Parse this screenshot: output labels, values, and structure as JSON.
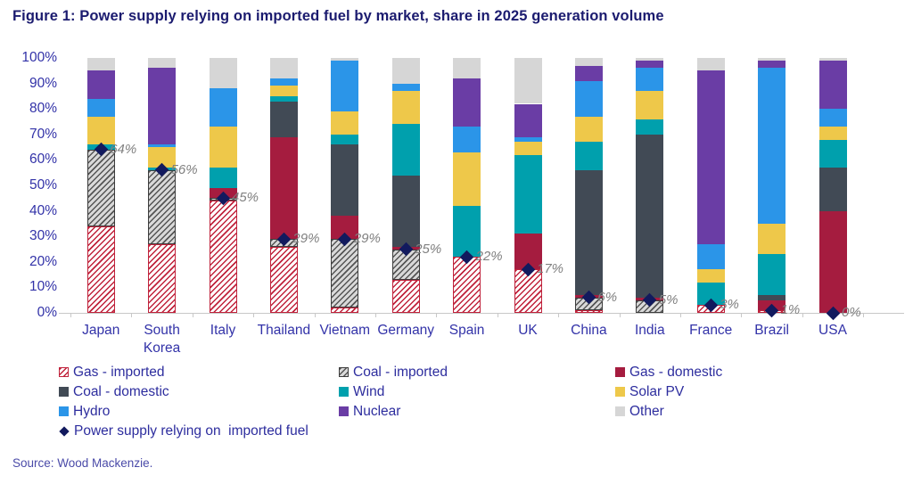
{
  "title": "Figure 1: Power supply relying on imported fuel by market, share in 2025 generation volume",
  "source": "Source: Wood Mackenzie.",
  "colors": {
    "title_text": "#1b1b6f",
    "axis_text": "#3232a8",
    "legend_text": "#2d2d9e",
    "source_text": "#4a4aa8",
    "marker_label_text": "#808080",
    "axis_line": "#c8c8c8",
    "gas_imported_stripe": "#c0223b",
    "gas_imported_bg": "#ffffff",
    "coal_imported_stripe": "#555555",
    "coal_imported_bg": "#d9d9d9",
    "coal_imported_border": "#3d3d3d",
    "gas_domestic": "#a51c3f",
    "coal_domestic": "#414a55",
    "wind": "#00a0ad",
    "solar_pv": "#eec84a",
    "hydro": "#2b95e8",
    "nuclear": "#6a3da5",
    "other": "#d6d6d6",
    "marker": "#121a5e"
  },
  "chart_data": {
    "type": "bar",
    "stacked": true,
    "unit": "%",
    "ylim": [
      0,
      100
    ],
    "grid": false,
    "legend_position": "bottom",
    "y_ticks": [
      "100%",
      "90%",
      "80%",
      "70%",
      "60%",
      "50%",
      "40%",
      "30%",
      "20%",
      "10%",
      "0%"
    ],
    "categories": [
      "Japan",
      "South Korea",
      "Italy",
      "Thailand",
      "Vietnam",
      "Germany",
      "Spain",
      "UK",
      "China",
      "India",
      "France",
      "Brazil",
      "USA"
    ],
    "series": [
      {
        "key": "gas_imported",
        "name": "Gas - imported",
        "values": [
          34,
          27,
          44,
          26,
          2,
          13,
          22,
          17,
          1,
          0,
          3,
          1,
          0
        ]
      },
      {
        "key": "coal_imported",
        "name": "Coal - imported",
        "values": [
          30,
          29,
          1,
          3,
          27,
          12,
          0,
          0,
          5,
          5,
          0,
          0,
          0
        ]
      },
      {
        "key": "gas_domestic",
        "name": "Gas - domestic",
        "values": [
          0,
          0,
          4,
          40,
          9,
          1,
          0,
          14,
          1,
          1,
          0,
          4,
          40
        ]
      },
      {
        "key": "coal_domestic",
        "name": "Coal - domestic",
        "values": [
          0,
          0,
          0,
          14,
          28,
          28,
          0,
          0,
          49,
          64,
          0,
          2,
          17
        ]
      },
      {
        "key": "wind",
        "name": "Wind",
        "values": [
          2,
          1,
          8,
          2,
          4,
          20,
          20,
          31,
          11,
          6,
          9,
          16,
          11
        ]
      },
      {
        "key": "solar_pv",
        "name": "Solar PV",
        "values": [
          11,
          8,
          16,
          4,
          9,
          13,
          21,
          5,
          10,
          11,
          5,
          12,
          5
        ]
      },
      {
        "key": "hydro",
        "name": "Hydro",
        "values": [
          7,
          1,
          15,
          3,
          20,
          3,
          10,
          2,
          14,
          9,
          10,
          61,
          7
        ]
      },
      {
        "key": "nuclear",
        "name": "Nuclear",
        "values": [
          11,
          30,
          0,
          0,
          0,
          0,
          19,
          13,
          6,
          3,
          68,
          3,
          19
        ]
      },
      {
        "key": "other",
        "name": "Other",
        "values": [
          5,
          4,
          12,
          8,
          1,
          10,
          8,
          18,
          3,
          1,
          5,
          1,
          1
        ]
      }
    ],
    "marker_series": {
      "key": "marker",
      "name": "Power supply relying on  imported fuel",
      "values": [
        64,
        56,
        45,
        29,
        29,
        25,
        22,
        17,
        6,
        5,
        3,
        1,
        0
      ],
      "labels": [
        "64%",
        "56%",
        "45%",
        "29%",
        "29%",
        "25%",
        "22%",
        "17%",
        "6%",
        "5%",
        "3%",
        "1%",
        "0%"
      ]
    }
  },
  "legend": {
    "rows": [
      [
        "gas_imported",
        "coal_imported",
        "gas_domestic"
      ],
      [
        "coal_domestic",
        "wind",
        "solar_pv"
      ],
      [
        "hydro",
        "nuclear",
        "other"
      ],
      [
        "marker"
      ]
    ]
  }
}
